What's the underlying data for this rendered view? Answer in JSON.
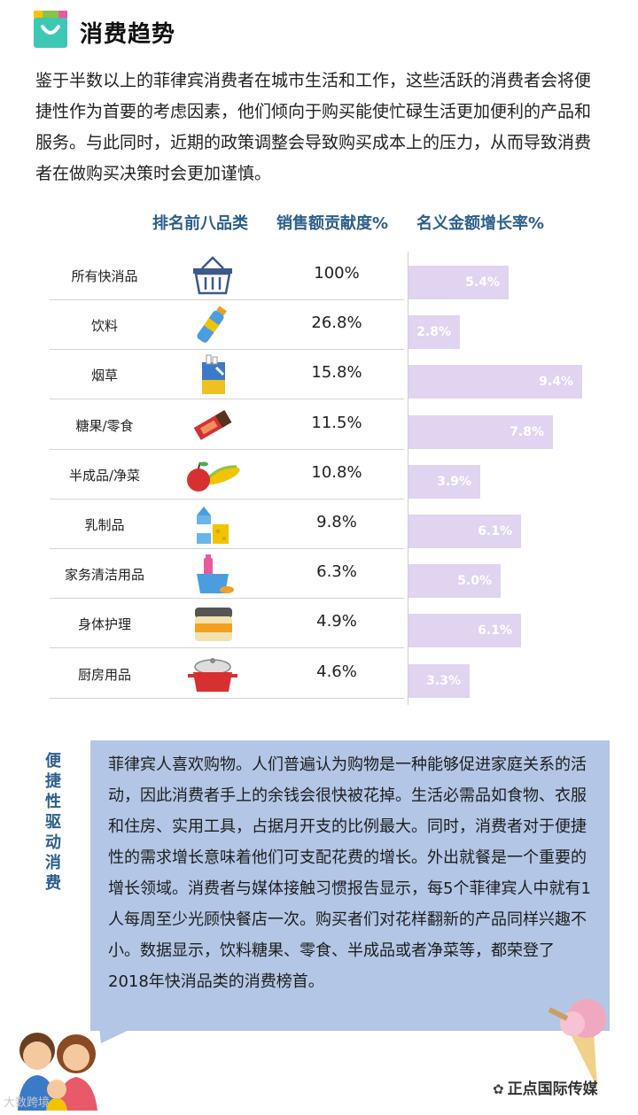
{
  "header": {
    "title": "消费趋势",
    "icon": "shopping-bag-icon"
  },
  "intro": "鉴于半数以上的菲律宾消费者在城市生活和工作，这些活跃的消费者会将便捷性作为首要的考虑因素，他们倾向于购买能使忙碌生活更加便利的产品和服务。与此同时，近期的政策调整会导致购买成本上的压力，从而导致消费者在做购买决策时会更加谨慎。",
  "chart_data": {
    "type": "table",
    "columns": [
      "排名前八品类",
      "销售额贡献度%",
      "名义金额增长率%"
    ],
    "rows": [
      {
        "category": "所有快消品",
        "icon": "basket-icon",
        "share": "100%",
        "growth": 5.4,
        "growth_label": "5.4%"
      },
      {
        "category": "饮料",
        "icon": "bottle-icon",
        "share": "26.8%",
        "growth": 2.8,
        "growth_label": "2.8%"
      },
      {
        "category": "烟草",
        "icon": "cigarette-pack-icon",
        "share": "15.8%",
        "growth": 9.4,
        "growth_label": "9.4%"
      },
      {
        "category": "糖果/零食",
        "icon": "candy-bar-icon",
        "share": "11.5%",
        "growth": 7.8,
        "growth_label": "7.8%"
      },
      {
        "category": "半成品/净菜",
        "icon": "apple-corn-icon",
        "share": "10.8%",
        "growth": 3.9,
        "growth_label": "3.9%"
      },
      {
        "category": "乳制品",
        "icon": "milk-cheese-icon",
        "share": "9.8%",
        "growth": 6.1,
        "growth_label": "6.1%"
      },
      {
        "category": "家务清洁用品",
        "icon": "cleaning-bucket-icon",
        "share": "6.3%",
        "growth": 5.0,
        "growth_label": "5.0%"
      },
      {
        "category": "身体护理",
        "icon": "cream-jar-icon",
        "share": "4.9%",
        "growth": 6.1,
        "growth_label": "6.1%"
      },
      {
        "category": "厨房用品",
        "icon": "cooking-pot-icon",
        "share": "4.6%",
        "growth": 3.3,
        "growth_label": "3.3%"
      }
    ],
    "growth_max": 9.4,
    "colors": {
      "bar": "#e0d4f1",
      "header": "#2d5f8b"
    }
  },
  "section2": {
    "side_title": [
      "便",
      "捷",
      "性",
      "驱",
      "动",
      "消",
      "费"
    ],
    "body": "菲律宾人喜欢购物。人们普遍认为购物是一种能够促进家庭关系的活动，因此消费者手上的余钱会很快被花掉。生活必需品如食物、衣服和住房、实用工具，占据月开支的比例最大。同时，消费者对于便捷性的需求增长意味着他们可支配花费的增长。外出就餐是一个重要的增长领域。消费者与媒体接触习惯报告显示，每5个菲律宾人中就有1人每周至少光顾快餐店一次。购买者们对花样翻新的产品同样兴趣不小。数据显示，饮料糖果、零食、半成品或者净菜等，都荣登了2018年快消品类的消费榜首。",
    "box_color": "#b3c6e6"
  },
  "watermarks": {
    "left": "大数跨境",
    "right": "正点国际传媒"
  }
}
